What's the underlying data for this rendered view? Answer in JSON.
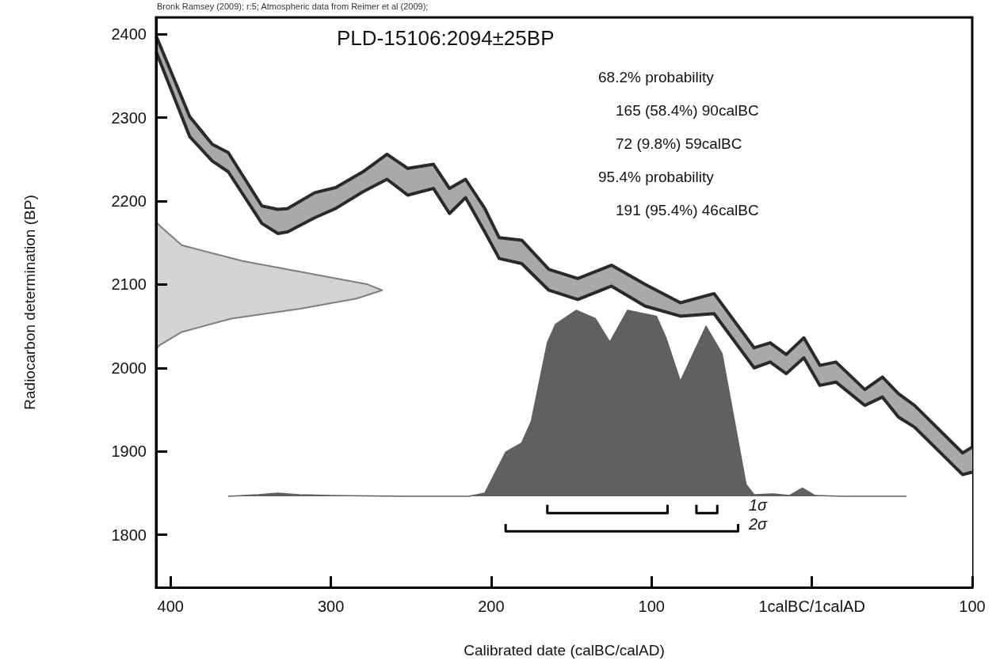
{
  "chart_data": {
    "type": "area",
    "title": "PLD-15106:2094±25BP",
    "xlabel": "Calibrated date (calBC/calAD)",
    "ylabel": "Radiocarbon determination (BP)",
    "xlim": [
      -409,
      100
    ],
    "ylim": [
      1737,
      2420
    ],
    "xticks": [
      {
        "value": -400,
        "label": "400"
      },
      {
        "value": -300,
        "label": "300"
      },
      {
        "value": -200,
        "label": "200"
      },
      {
        "value": -100,
        "label": "100"
      },
      {
        "value": 0,
        "label": "1calBC/1calAD"
      },
      {
        "value": 100,
        "label": "100"
      }
    ],
    "yticks": [
      1800,
      1900,
      2000,
      2100,
      2200,
      2300,
      2400
    ],
    "grid": false,
    "annotations": [
      "Bronk Ramsey (2009); r:5; Atmospheric data from Reimer et al (2009);",
      "68.2% probability",
      "165 (58.4%) 90calBC",
      "72 (9.8%) 59calBC",
      "95.4% probability",
      "191 (95.4%) 46calBC",
      "1σ",
      "2σ"
    ],
    "series": [
      {
        "color": "#a9a9a9",
        "x": [
          -409,
          -388,
          -374,
          -364,
          -343,
          -333,
          -327,
          -310,
          -297,
          -280,
          -265,
          -252,
          -236,
          -226,
          -216,
          -204,
          -195,
          -181,
          -164,
          -146,
          -125,
          -104,
          -82,
          -61,
          -36,
          -26,
          -16,
          -5,
          5,
          15,
          33,
          44,
          54,
          64,
          94,
          100
        ],
        "values": [
          2398,
          2301,
          2268,
          2258,
          2194,
          2190,
          2191,
          2210,
          2216,
          2235,
          2256,
          2239,
          2244,
          2215,
          2226,
          2191,
          2156,
          2153,
          2118,
          2107,
          2123,
          2100,
          2078,
          2089,
          2024,
          2030,
          2016,
          2036,
          2003,
          2007,
          1974,
          1989,
          1969,
          1955,
          1898,
          1905
        ]
      },
      {
        "color": "#ffffff",
        "x": [
          -409,
          -388,
          -374,
          -364,
          -343,
          -333,
          -327,
          -310,
          -297,
          -280,
          -265,
          -252,
          -236,
          -226,
          -216,
          -204,
          -195,
          -181,
          -164,
          -146,
          -125,
          -104,
          -82,
          -61,
          -36,
          -26,
          -16,
          -5,
          5,
          15,
          33,
          44,
          54,
          64,
          94,
          100
        ],
        "values": [
          2379,
          2277,
          2248,
          2235,
          2173,
          2161,
          2163,
          2180,
          2191,
          2211,
          2226,
          2207,
          2215,
          2185,
          2204,
          2163,
          2131,
          2125,
          2093,
          2082,
          2098,
          2074,
          2062,
          2065,
          2000,
          2007,
          1993,
          2012,
          1979,
          1983,
          1955,
          1965,
          1941,
          1929,
          1872,
          1875
        ]
      },
      {
        "color": "#d3d3d3",
        "x": [
          -409,
          -406,
          -393,
          -355,
          -310,
          -277,
          -268,
          -284,
          -319,
          -362,
          -393,
          -407,
          -409
        ],
        "values": [
          2175,
          2169,
          2147,
          2128,
          2112,
          2100,
          2093,
          2083,
          2071,
          2059,
          2043,
          2027,
          2022
        ]
      },
      {
        "color": "#606060",
        "x": [
          -364,
          -345,
          -333,
          -320,
          -300,
          -250,
          -214,
          -204,
          -191,
          -181,
          -175,
          -165,
          -160,
          -147,
          -135,
          -126,
          -115,
          -97,
          -91,
          -82,
          -66,
          -56,
          -41,
          -36,
          -24,
          -14,
          -6,
          2,
          20,
          59
        ],
        "values": [
          1846,
          1848,
          1850,
          1848,
          1847,
          1846,
          1846,
          1850,
          1899,
          1910,
          1936,
          2030,
          2052,
          2069,
          2059,
          2031,
          2069,
          2062,
          2036,
          1984,
          2050,
          2017,
          1860,
          1848,
          1849,
          1847,
          1856,
          1847,
          1846,
          1846
        ]
      },
      {
        "type": "line",
        "color": "#000000",
        "x": [
          -165,
          -165,
          -90,
          -90,
          null,
          -72,
          -72,
          -59,
          -59,
          null,
          -191,
          -191,
          -46,
          -46
        ],
        "values": [
          1836,
          1826,
          1826,
          1836,
          null,
          1836,
          1826,
          1826,
          1836,
          null,
          1813,
          1804,
          1804,
          1813
        ]
      }
    ]
  }
}
